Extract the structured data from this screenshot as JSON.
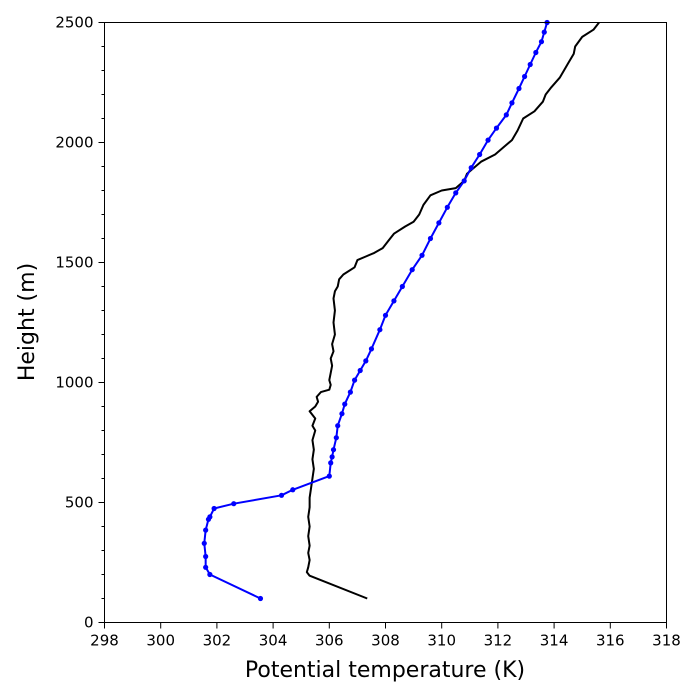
{
  "chart_data": {
    "type": "line",
    "title": "",
    "xlabel": "Potential temperature (K)",
    "ylabel": "Height (m)",
    "xlim": [
      298,
      318
    ],
    "ylim": [
      0,
      2500
    ],
    "xticks": [
      298,
      300,
      302,
      304,
      306,
      308,
      310,
      312,
      314,
      316,
      318
    ],
    "yticks": [
      0,
      500,
      1000,
      1500,
      2000,
      2500
    ],
    "yminor_step": 100,
    "grid": false,
    "legend": "none",
    "series": [
      {
        "color": "#000000",
        "marker": "none",
        "points": [
          [
            307.35,
            100
          ],
          [
            305.3,
            195
          ],
          [
            305.2,
            210
          ],
          [
            305.25,
            230
          ],
          [
            305.3,
            260
          ],
          [
            305.25,
            290
          ],
          [
            305.3,
            320
          ],
          [
            305.25,
            360
          ],
          [
            305.3,
            400
          ],
          [
            305.25,
            440
          ],
          [
            305.3,
            480
          ],
          [
            305.3,
            520
          ],
          [
            305.35,
            560
          ],
          [
            305.4,
            600
          ],
          [
            305.45,
            640
          ],
          [
            305.4,
            680
          ],
          [
            305.45,
            720
          ],
          [
            305.4,
            760
          ],
          [
            305.5,
            800
          ],
          [
            305.4,
            820
          ],
          [
            305.5,
            850
          ],
          [
            305.3,
            880
          ],
          [
            305.5,
            900
          ],
          [
            305.6,
            920
          ],
          [
            305.55,
            940
          ],
          [
            305.7,
            960
          ],
          [
            306.0,
            970
          ],
          [
            306.05,
            990
          ],
          [
            306.0,
            1010
          ],
          [
            306.05,
            1040
          ],
          [
            306.1,
            1070
          ],
          [
            306.05,
            1100
          ],
          [
            306.15,
            1130
          ],
          [
            306.1,
            1160
          ],
          [
            306.2,
            1200
          ],
          [
            306.15,
            1250
          ],
          [
            306.2,
            1300
          ],
          [
            306.15,
            1350
          ],
          [
            306.2,
            1380
          ],
          [
            306.3,
            1400
          ],
          [
            306.35,
            1430
          ],
          [
            306.5,
            1450
          ],
          [
            306.9,
            1480
          ],
          [
            307.0,
            1510
          ],
          [
            307.3,
            1525
          ],
          [
            307.6,
            1540
          ],
          [
            307.9,
            1560
          ],
          [
            308.1,
            1590
          ],
          [
            308.3,
            1620
          ],
          [
            308.7,
            1650
          ],
          [
            309.0,
            1670
          ],
          [
            309.2,
            1700
          ],
          [
            309.35,
            1740
          ],
          [
            309.6,
            1780
          ],
          [
            310.0,
            1800
          ],
          [
            310.5,
            1810
          ],
          [
            310.8,
            1840
          ],
          [
            310.9,
            1870
          ],
          [
            311.1,
            1890
          ],
          [
            311.4,
            1920
          ],
          [
            311.9,
            1950
          ],
          [
            312.2,
            1980
          ],
          [
            312.5,
            2010
          ],
          [
            312.7,
            2050
          ],
          [
            312.9,
            2100
          ],
          [
            313.3,
            2130
          ],
          [
            313.6,
            2170
          ],
          [
            313.7,
            2200
          ],
          [
            313.9,
            2230
          ],
          [
            314.2,
            2270
          ],
          [
            314.35,
            2300
          ],
          [
            314.5,
            2330
          ],
          [
            314.7,
            2370
          ],
          [
            314.75,
            2400
          ],
          [
            315.0,
            2440
          ],
          [
            315.4,
            2470
          ],
          [
            315.6,
            2500
          ]
        ]
      },
      {
        "color": "#0000ff",
        "marker": "circle",
        "points": [
          [
            303.55,
            100
          ],
          [
            301.75,
            200
          ],
          [
            301.6,
            230
          ],
          [
            301.6,
            275
          ],
          [
            301.55,
            330
          ],
          [
            301.6,
            385
          ],
          [
            301.7,
            430
          ],
          [
            301.75,
            440
          ],
          [
            301.9,
            475
          ],
          [
            302.6,
            495
          ],
          [
            304.3,
            530
          ],
          [
            304.7,
            553
          ],
          [
            306.0,
            610
          ],
          [
            306.05,
            665
          ],
          [
            306.1,
            690
          ],
          [
            306.15,
            720
          ],
          [
            306.25,
            770
          ],
          [
            306.3,
            820
          ],
          [
            306.45,
            870
          ],
          [
            306.55,
            910
          ],
          [
            306.75,
            960
          ],
          [
            306.9,
            1010
          ],
          [
            307.1,
            1050
          ],
          [
            307.3,
            1090
          ],
          [
            307.5,
            1140
          ],
          [
            307.8,
            1220
          ],
          [
            308.0,
            1280
          ],
          [
            308.3,
            1340
          ],
          [
            308.6,
            1400
          ],
          [
            308.95,
            1470
          ],
          [
            309.3,
            1530
          ],
          [
            309.6,
            1600
          ],
          [
            309.9,
            1665
          ],
          [
            310.2,
            1730
          ],
          [
            310.5,
            1790
          ],
          [
            310.8,
            1840
          ],
          [
            311.05,
            1895
          ],
          [
            311.35,
            1950
          ],
          [
            311.65,
            2010
          ],
          [
            311.95,
            2060
          ],
          [
            312.3,
            2115
          ],
          [
            312.5,
            2165
          ],
          [
            312.75,
            2225
          ],
          [
            312.95,
            2275
          ],
          [
            313.15,
            2325
          ],
          [
            313.35,
            2375
          ],
          [
            313.55,
            2420
          ],
          [
            313.65,
            2460
          ],
          [
            313.75,
            2500
          ]
        ]
      }
    ]
  }
}
